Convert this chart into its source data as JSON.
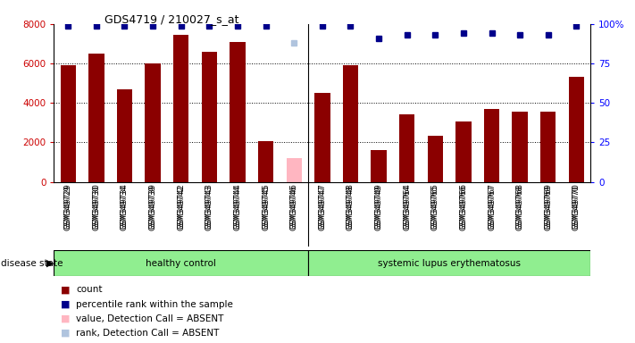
{
  "title": "GDS4719 / 210027_s_at",
  "samples": [
    "GSM349729",
    "GSM349730",
    "GSM349734",
    "GSM349739",
    "GSM349742",
    "GSM349743",
    "GSM349744",
    "GSM349745",
    "GSM349746",
    "GSM349747",
    "GSM349748",
    "GSM349749",
    "GSM349764",
    "GSM349765",
    "GSM349766",
    "GSM349767",
    "GSM349768",
    "GSM349769",
    "GSM349770"
  ],
  "counts": [
    5900,
    6500,
    4700,
    6000,
    7450,
    6600,
    7100,
    2050,
    1200,
    4500,
    5900,
    1600,
    3400,
    2350,
    3050,
    3700,
    3550,
    3550,
    5300
  ],
  "absent": [
    false,
    false,
    false,
    false,
    false,
    false,
    false,
    false,
    true,
    false,
    false,
    false,
    false,
    false,
    false,
    false,
    false,
    false,
    false
  ],
  "percentile_ranks": [
    99,
    99,
    99,
    99,
    99,
    99,
    99,
    99,
    88,
    99,
    99,
    91,
    93,
    93,
    94,
    94,
    93,
    93,
    99
  ],
  "absent_rank": [
    false,
    false,
    false,
    false,
    false,
    false,
    false,
    false,
    true,
    false,
    false,
    false,
    false,
    false,
    false,
    false,
    false,
    false,
    false
  ],
  "group_labels": [
    "healthy control",
    "systemic lupus erythematosus"
  ],
  "group_boundaries": [
    0,
    9,
    19
  ],
  "bar_color_present": "#8B0000",
  "bar_color_absent": "#FFB6C1",
  "dot_color_present": "#00008B",
  "dot_color_absent": "#B0C4DE",
  "ylim_left": [
    0,
    8000
  ],
  "ylim_right": [
    0,
    100
  ],
  "yticks_left": [
    0,
    2000,
    4000,
    6000,
    8000
  ],
  "yticks_right": [
    0,
    25,
    50,
    75,
    100
  ],
  "ytick_labels_right": [
    "0",
    "25",
    "50",
    "75",
    "100%"
  ],
  "background_color": "#ffffff",
  "disease_state_label": "disease state",
  "legend_items": [
    {
      "label": "count",
      "color": "#8B0000"
    },
    {
      "label": "percentile rank within the sample",
      "color": "#00008B"
    },
    {
      "label": "value, Detection Call = ABSENT",
      "color": "#FFB6C1"
    },
    {
      "label": "rank, Detection Call = ABSENT",
      "color": "#B0C4DE"
    }
  ]
}
